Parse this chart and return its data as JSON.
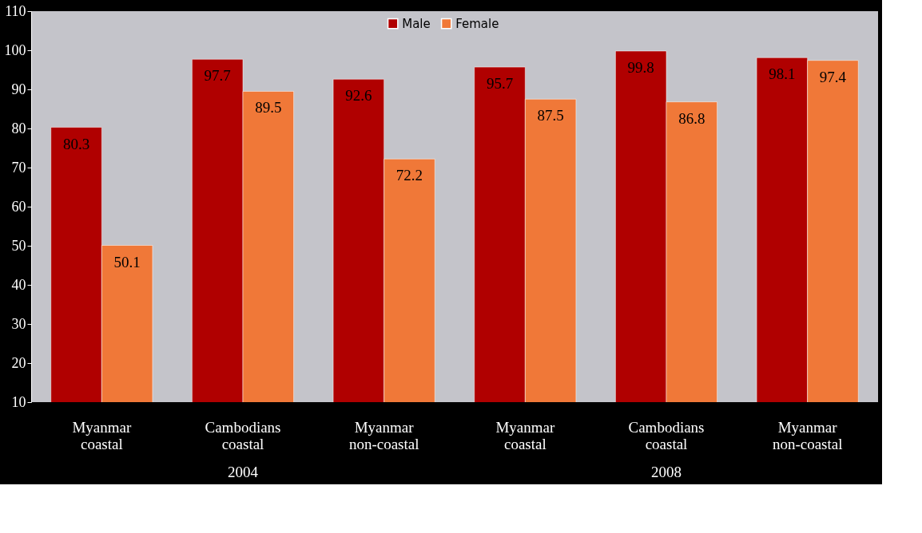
{
  "chart_data": {
    "type": "bar",
    "categories": [
      "Myanmar coastal",
      "Cambodians coastal",
      "Myanmar non-coastal",
      "Myanmar coastal",
      "Cambodians coastal",
      "Myanmar non-coastal"
    ],
    "series": [
      {
        "name": "Male",
        "color": "#b00000",
        "values": [
          80.3,
          97.7,
          92.6,
          95.7,
          99.8,
          98.1
        ]
      },
      {
        "name": "Female",
        "color": "#f07838",
        "values": [
          50.1,
          89.5,
          72.2,
          87.5,
          86.8,
          97.4
        ]
      }
    ],
    "annotations": [
      "2004",
      "2008"
    ],
    "ylim": [
      10,
      110
    ],
    "yticks": [
      10,
      20,
      30,
      40,
      50,
      60,
      70,
      80,
      90,
      100,
      110
    ],
    "grid": false,
    "legend": "top",
    "data_labels": true
  }
}
